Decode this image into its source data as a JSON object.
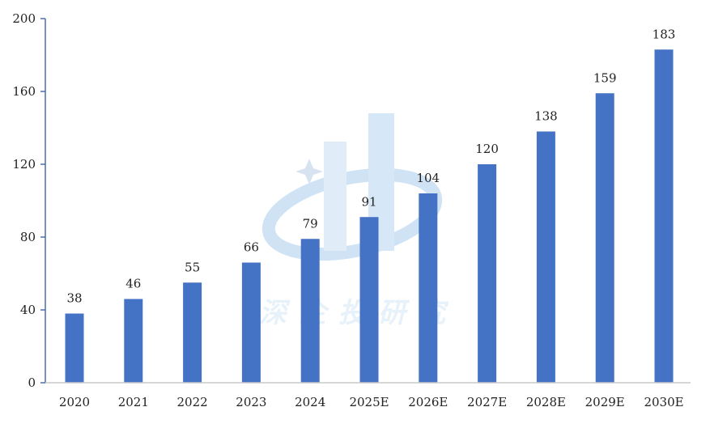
{
  "chart_data": {
    "type": "bar",
    "title": "",
    "xlabel": "",
    "ylabel": "",
    "categories": [
      "2020",
      "2021",
      "2022",
      "2023",
      "2024",
      "2025E",
      "2026E",
      "2027E",
      "2028E",
      "2029E",
      "2030E"
    ],
    "values": [
      38,
      46,
      55,
      66,
      79,
      91,
      104,
      120,
      138,
      159,
      183
    ],
    "ylim": [
      0,
      200
    ],
    "yticks": [
      "0",
      "40",
      "80",
      "120",
      "160",
      "200"
    ],
    "grid": false,
    "bar_color": "#4472c4",
    "axis_color": "#4a6fa5"
  },
  "watermark": {
    "text": "深企投研究"
  }
}
